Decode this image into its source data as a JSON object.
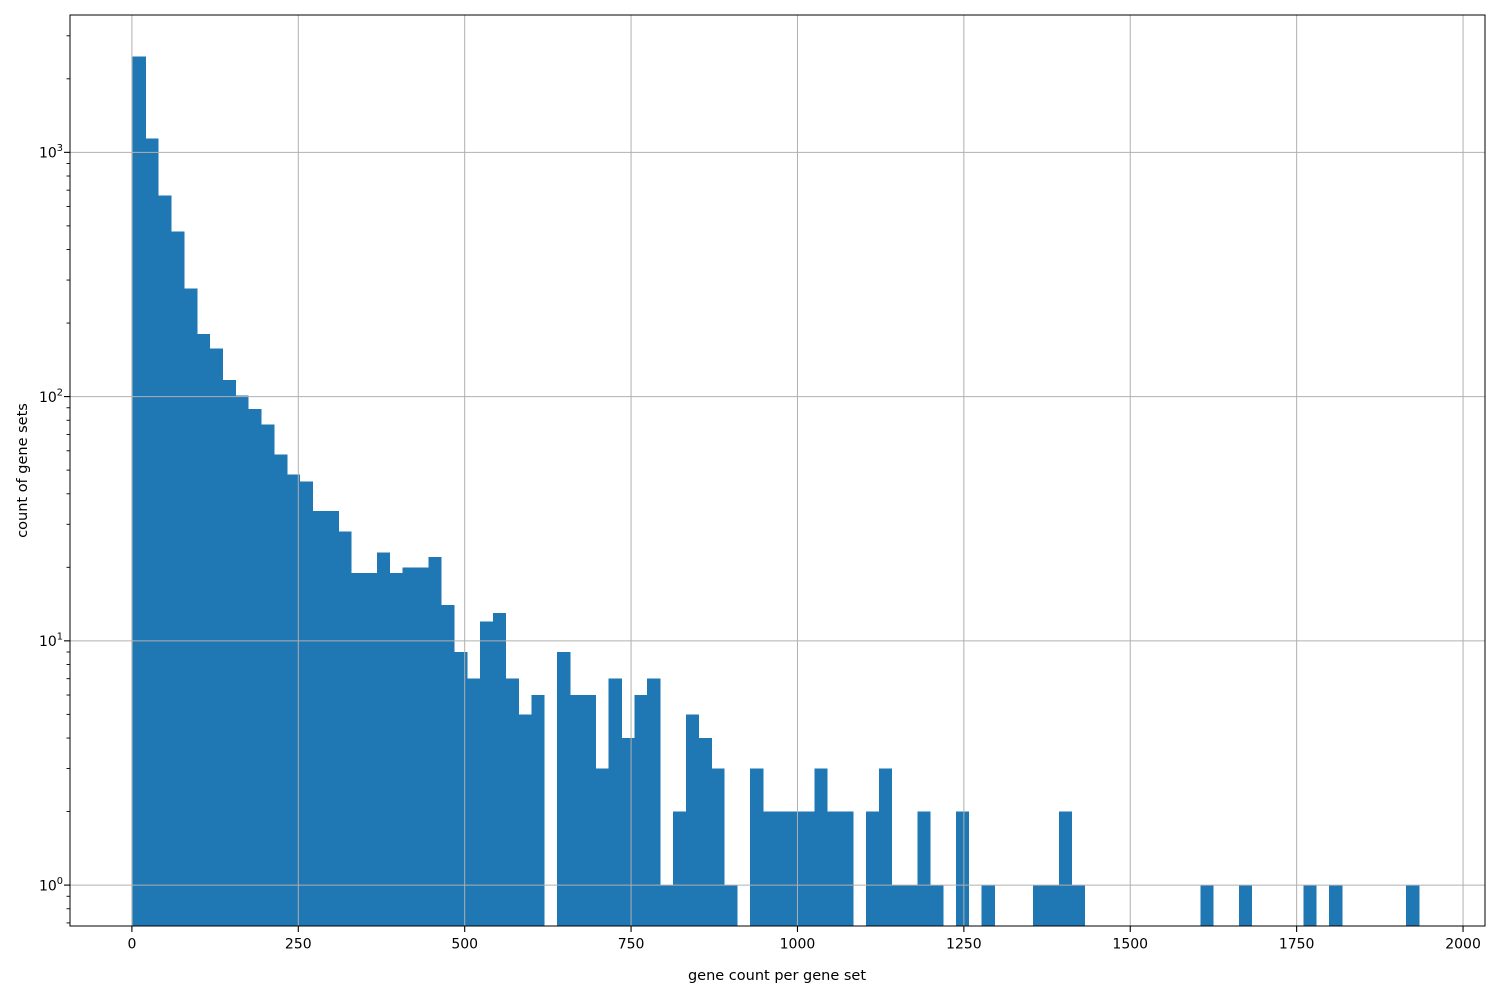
{
  "chart_data": {
    "type": "bar",
    "subtype": "histogram",
    "title": "",
    "xlabel": "gene count per gene set",
    "ylabel": "count of gene sets",
    "grid": true,
    "legend": false,
    "yscale": "log",
    "xlim": [
      -93,
      2033
    ],
    "ylim": [
      0.68,
      3650
    ],
    "x_ticks": [
      0,
      250,
      500,
      750,
      1000,
      1250,
      1500,
      1750,
      2000
    ],
    "y_tick_exponents": [
      0,
      1,
      2,
      3
    ],
    "bar_color": "#1f77b4",
    "grid_color": "#b0b0b0",
    "spine_color": "#000000",
    "background_color": "#ffffff",
    "bins": {
      "start": 1,
      "width": 19.33,
      "count": 100
    },
    "counts": [
      2470,
      1140,
      667,
      474,
      277,
      180,
      157,
      117,
      101,
      89,
      77,
      58,
      48,
      45,
      34,
      34,
      28,
      19,
      19,
      23,
      19,
      20,
      20,
      22,
      14,
      9,
      7,
      12,
      13,
      7,
      5,
      6,
      0,
      9,
      6,
      6,
      3,
      7,
      4,
      6,
      7,
      1,
      2,
      5,
      4,
      3,
      1,
      0,
      3,
      2,
      2,
      2,
      2,
      3,
      2,
      2,
      0,
      2,
      3,
      1,
      1,
      2,
      1,
      0,
      2,
      0,
      1,
      0,
      0,
      0,
      1,
      1,
      2,
      1,
      0,
      0,
      0,
      0,
      0,
      0,
      0,
      0,
      0,
      1,
      0,
      0,
      1,
      0,
      0,
      0,
      0,
      1,
      0,
      1,
      0,
      0,
      0,
      0,
      0,
      1
    ]
  }
}
